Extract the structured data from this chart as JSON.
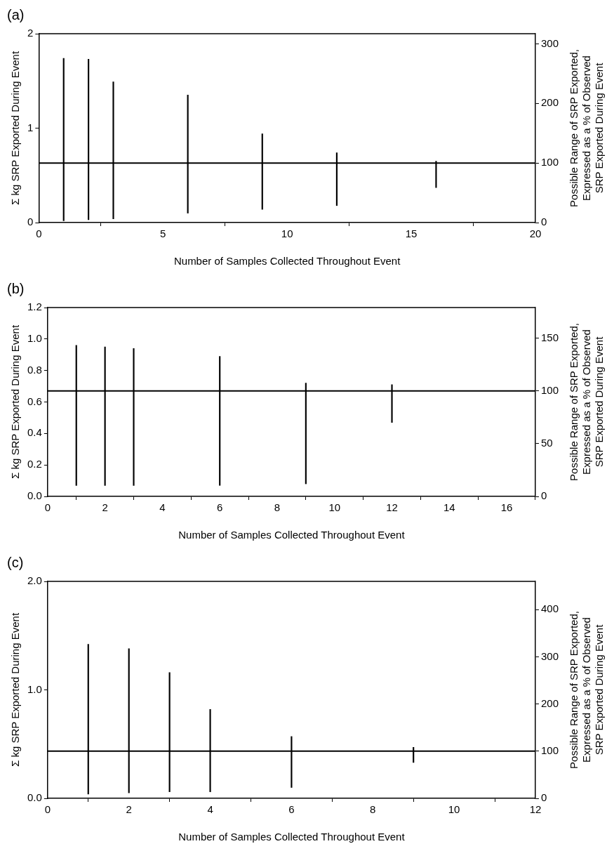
{
  "chart_data": [
    {
      "type": "bar",
      "title": "(a)",
      "xlabel": "Number of Samples Collected Throughout Event",
      "ylabel": "Σ kg SRP Exported During Event",
      "y2label": "Possible Range of SRP Exported, Expressed as a % of Observed SRP Exported During Event",
      "x": [
        1,
        2,
        3,
        6,
        9,
        12,
        16
      ],
      "base": [
        0.02,
        0.03,
        0.04,
        0.1,
        0.14,
        0.18,
        0.37
      ],
      "values": [
        1.72,
        1.7,
        1.45,
        1.25,
        0.8,
        0.56,
        0.28
      ],
      "color": "#000000",
      "xlim": [
        0,
        20
      ],
      "xticks": [
        0,
        5,
        10,
        15,
        20
      ],
      "ylim": [
        0,
        2
      ],
      "yticks": [
        0,
        1,
        2
      ],
      "y2lim": [
        0,
        317
      ],
      "y2ticks": [
        0,
        100,
        200,
        300
      ],
      "ref_lines": [
        {
          "axis": "y2",
          "value": 100,
          "color": "#000000"
        }
      ],
      "grid": false,
      "legend": false
    },
    {
      "type": "bar",
      "title": "(b)",
      "xlabel": "Number of Samples Collected Throughout Event",
      "ylabel": "Σ kg SRP Exported During Event",
      "y2label": "Possible Range of SRP Exported, Expressed as a % of Observed SRP Exported During Event",
      "x": [
        1,
        2,
        3,
        6,
        9,
        12
      ],
      "base": [
        0.07,
        0.07,
        0.07,
        0.07,
        0.08,
        0.47
      ],
      "values": [
        0.89,
        0.88,
        0.87,
        0.82,
        0.64,
        0.24
      ],
      "color": "#000000",
      "xlim": [
        0,
        17
      ],
      "xticks": [
        0,
        2,
        4,
        6,
        8,
        10,
        12,
        14,
        16
      ],
      "ylim": [
        0,
        1.2
      ],
      "yticks": [
        {
          "value": 0,
          "label": "0.0"
        },
        {
          "value": 0.2,
          "label": "0.2"
        },
        {
          "value": 0.4,
          "label": "0.4"
        },
        {
          "value": 0.6,
          "label": "0.6"
        },
        {
          "value": 0.8,
          "label": "0.8"
        },
        {
          "value": 1,
          "label": "1.0"
        },
        {
          "value": 1.2,
          "label": "1.2"
        }
      ],
      "y2lim": [
        0,
        179
      ],
      "y2ticks": [
        0,
        50,
        100,
        150
      ],
      "ref_lines": [
        {
          "axis": "y2",
          "value": 100,
          "color": "#000000"
        }
      ],
      "grid": false,
      "legend": false
    },
    {
      "type": "bar",
      "title": "(c)",
      "xlabel": "Number of Samples Collected Throughout Event",
      "ylabel": "Σ kg SRP Exported During Event",
      "y2label": "Possible Range of SRP Exported, Expressed as a % of Observed SRP Exported During Event",
      "x": [
        1,
        2,
        3,
        4,
        6,
        9
      ],
      "base": [
        0.04,
        0.05,
        0.06,
        0.06,
        0.1,
        0.33
      ],
      "values": [
        1.38,
        1.33,
        1.1,
        0.76,
        0.47,
        0.14
      ],
      "color": "#000000",
      "xlim": [
        0,
        12
      ],
      "xticks": [
        0,
        2,
        4,
        6,
        8,
        10,
        12
      ],
      "ylim": [
        0,
        2
      ],
      "yticks": [
        {
          "value": 0,
          "label": "0.0"
        },
        {
          "value": 1,
          "label": "1.0"
        },
        {
          "value": 2,
          "label": "2.0"
        }
      ],
      "y2lim": [
        0,
        460
      ],
      "y2ticks": [
        0,
        100,
        200,
        300,
        400
      ],
      "ref_lines": [
        {
          "axis": "y2",
          "value": 100,
          "color": "#000000"
        }
      ],
      "grid": false,
      "legend": false
    }
  ]
}
